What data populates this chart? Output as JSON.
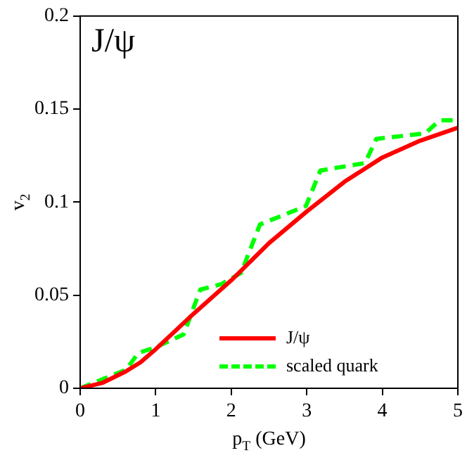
{
  "chart_data": {
    "type": "line",
    "title": "J/ψ",
    "xlabel": "p$_{T}$ (GeV)",
    "ylabel": "v$_{2}$",
    "xlim": [
      0,
      5
    ],
    "xticks": [
      0,
      1,
      2,
      3,
      4,
      5
    ],
    "ylim": [
      0,
      0.2
    ],
    "yticks": [
      0,
      0.05,
      0.1,
      0.15,
      0.2
    ],
    "grid": false,
    "legend": "bottom right",
    "marker": "none",
    "series": [
      {
        "name": "J/ψ",
        "color": "#ff0000",
        "line_style": "solid",
        "x": [
          0,
          0.3,
          0.6,
          0.8,
          1,
          1.5,
          2,
          2.5,
          3,
          3.5,
          4,
          4.5,
          5
        ],
        "values": [
          0,
          0.003,
          0.009,
          0.014,
          0.021,
          0.04,
          0.058,
          0.078,
          0.095,
          0.111,
          0.124,
          0.133,
          0.14
        ]
      },
      {
        "name": "scaled quark",
        "color": "#00ff00",
        "line_style": "dashed",
        "x": [
          0,
          0.61,
          0.77,
          1,
          1.37,
          1.59,
          1.87,
          2.13,
          2.38,
          2.99,
          3.18,
          3.77,
          3.92,
          4.57,
          4.76,
          5
        ],
        "values": [
          0,
          0.01,
          0.019,
          0.022,
          0.029,
          0.053,
          0.056,
          0.062,
          0.088,
          0.098,
          0.117,
          0.121,
          0.134,
          0.137,
          0.144,
          0.144
        ]
      }
    ]
  }
}
